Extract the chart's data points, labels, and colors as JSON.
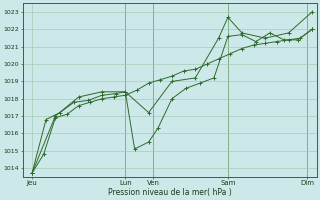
{
  "xlabel": "Pression niveau de la mer( hPa )",
  "bg_color": "#cce8e8",
  "grid_color": "#a8ccb8",
  "line_color": "#2d6b2d",
  "ylim": [
    1013.5,
    1023.5
  ],
  "xlim": [
    0,
    252
  ],
  "yticks": [
    1014,
    1015,
    1016,
    1017,
    1018,
    1019,
    1020,
    1021,
    1022,
    1023
  ],
  "day_labels": [
    "Jeu",
    "Lun",
    "Ven",
    "Sam",
    "Dim"
  ],
  "day_positions": [
    8,
    88,
    112,
    176,
    244
  ],
  "vline_positions": [
    88,
    112,
    176,
    244
  ],
  "series1": {
    "x": [
      8,
      18,
      28,
      38,
      48,
      58,
      68,
      78,
      88,
      98,
      108,
      118,
      128,
      138,
      148,
      158,
      168,
      178,
      188,
      198,
      208,
      218,
      228,
      238,
      248
    ],
    "y": [
      1013.7,
      1014.8,
      1016.9,
      1017.1,
      1017.6,
      1017.8,
      1018.0,
      1018.1,
      1018.2,
      1018.5,
      1018.9,
      1019.1,
      1019.3,
      1019.6,
      1019.7,
      1020.0,
      1020.3,
      1020.6,
      1020.9,
      1021.1,
      1021.2,
      1021.3,
      1021.4,
      1021.5,
      1022.0
    ]
  },
  "series2": {
    "x": [
      8,
      20,
      32,
      44,
      56,
      68,
      80,
      88,
      96,
      108,
      116,
      128,
      140,
      152,
      164,
      176,
      188,
      200,
      212,
      224,
      236,
      248
    ],
    "y": [
      1013.7,
      1016.8,
      1017.2,
      1017.8,
      1017.9,
      1018.2,
      1018.3,
      1018.4,
      1015.1,
      1015.5,
      1016.3,
      1018.0,
      1018.6,
      1018.9,
      1019.2,
      1021.6,
      1021.7,
      1021.3,
      1021.8,
      1021.4,
      1021.4,
      1022.0
    ]
  },
  "series3": {
    "x": [
      8,
      28,
      48,
      68,
      88,
      108,
      128,
      148,
      168,
      176,
      188,
      208,
      228,
      248
    ],
    "y": [
      1013.7,
      1017.0,
      1018.1,
      1018.4,
      1018.4,
      1017.2,
      1019.0,
      1019.2,
      1021.5,
      1022.7,
      1021.8,
      1021.5,
      1021.8,
      1023.0
    ]
  }
}
